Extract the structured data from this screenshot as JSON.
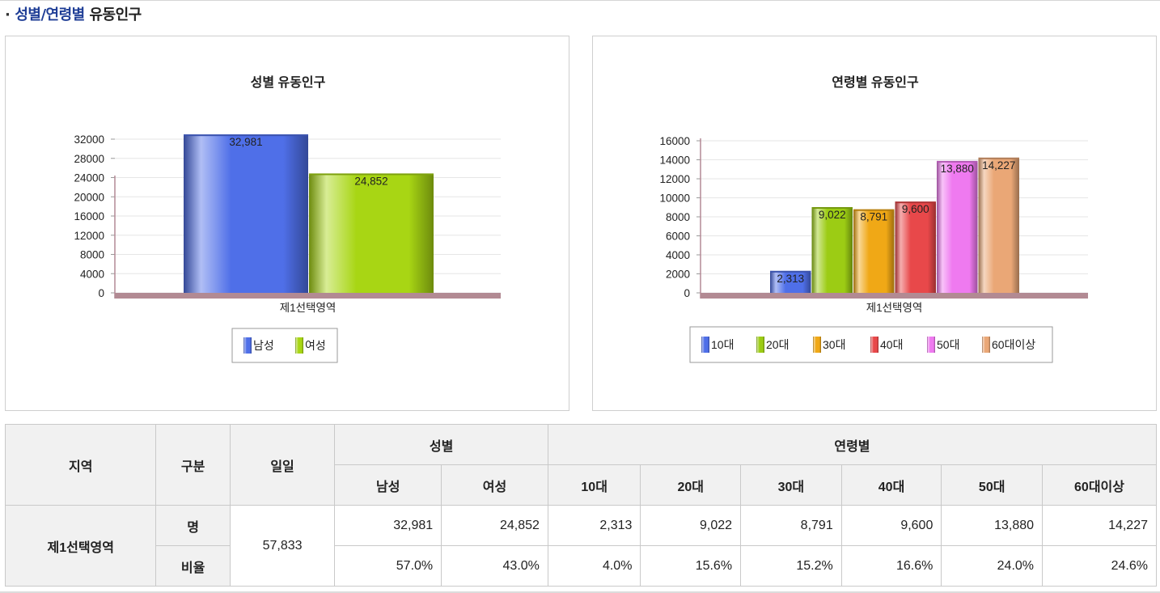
{
  "section": {
    "bullet": "·",
    "title_highlight": "성별/연령별",
    "title_rest": " 유동인구"
  },
  "chart_data": [
    {
      "type": "bar",
      "title": "성별 유동인구",
      "xlabel": "제1선택영역",
      "ylabel": "",
      "ylim": [
        0,
        33000
      ],
      "yticks": [
        0,
        4000,
        8000,
        12000,
        16000,
        20000,
        24000,
        28000,
        32000
      ],
      "categories": [
        "제1선택영역"
      ],
      "series": [
        {
          "name": "남성",
          "values": [
            32981
          ],
          "label": "32,981",
          "color": "#4f6fe8"
        },
        {
          "name": "여성",
          "values": [
            24852
          ],
          "label": "24,852",
          "color": "#a8d614"
        }
      ],
      "legend": "bottom"
    },
    {
      "type": "bar",
      "title": "연령별 유동인구",
      "xlabel": "제1선택영역",
      "ylabel": "",
      "ylim": [
        0,
        16000
      ],
      "yticks": [
        0,
        2000,
        4000,
        6000,
        8000,
        10000,
        12000,
        14000,
        16000
      ],
      "categories": [
        "제1선택영역"
      ],
      "series": [
        {
          "name": "10대",
          "values": [
            2313
          ],
          "label": "2,313",
          "color": "#4f6fe8"
        },
        {
          "name": "20대",
          "values": [
            9022
          ],
          "label": "9,022",
          "color": "#9ccc14"
        },
        {
          "name": "30대",
          "values": [
            8791
          ],
          "label": "8,791",
          "color": "#f0a816"
        },
        {
          "name": "40대",
          "values": [
            9600
          ],
          "label": "9,600",
          "color": "#e8484a"
        },
        {
          "name": "50대",
          "values": [
            13880
          ],
          "label": "13,880",
          "color": "#ef7af0"
        },
        {
          "name": "60대이상",
          "values": [
            14227
          ],
          "label": "14,227",
          "color": "#eaa776"
        }
      ],
      "legend": "bottom"
    }
  ],
  "table": {
    "headers": {
      "region": "지역",
      "category": "구분",
      "daily": "일일",
      "gender_group": "성별",
      "age_group": "연령별",
      "gender_cols": [
        "남성",
        "여성"
      ],
      "age_cols": [
        "10대",
        "20대",
        "30대",
        "40대",
        "50대",
        "60대이상"
      ]
    },
    "region": "제1선택영역",
    "daily": "57,833",
    "rows": [
      {
        "label": "명",
        "values": [
          "32,981",
          "24,852",
          "2,313",
          "9,022",
          "8,791",
          "9,600",
          "13,880",
          "14,227"
        ]
      },
      {
        "label": "비율",
        "values": [
          "57.0%",
          "43.0%",
          "4.0%",
          "15.6%",
          "15.2%",
          "16.6%",
          "24.0%",
          "24.6%"
        ]
      }
    ]
  }
}
